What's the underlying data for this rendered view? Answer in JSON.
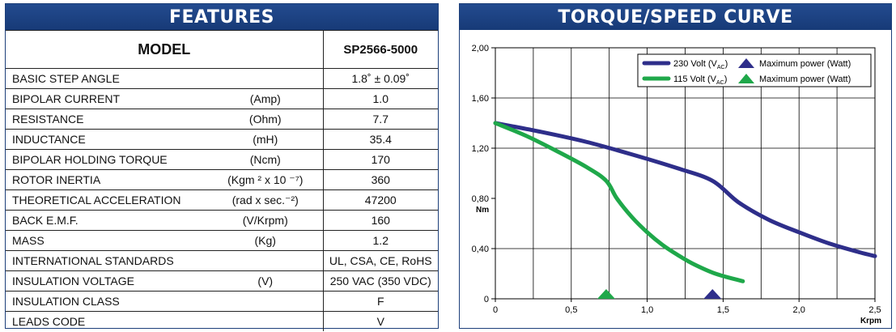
{
  "features": {
    "title": "FEATURES",
    "model_label": "MODEL",
    "model_value": "SP2566-5000",
    "rows": [
      {
        "label": "BASIC STEP ANGLE",
        "unit": "",
        "value": "1.8˚ ± 0.09˚"
      },
      {
        "label": "BIPOLAR CURRENT",
        "unit": "(Amp)",
        "value": "1.0"
      },
      {
        "label": "RESISTANCE",
        "unit": "(Ohm)",
        "value": "7.7"
      },
      {
        "label": "INDUCTANCE",
        "unit": "(mH)",
        "value": "35.4"
      },
      {
        "label": "BIPOLAR HOLDING TORQUE",
        "unit": "(Ncm)",
        "value": "170"
      },
      {
        "label": "ROTOR INERTIA",
        "unit": "(Kgm ² x 10 ⁻⁷)",
        "value": "360"
      },
      {
        "label": "THEORETICAL ACCELERATION",
        "unit": "(rad x sec.⁻²)",
        "value": "47200"
      },
      {
        "label": "BACK E.M.F.",
        "unit": "(V/Krpm)",
        "value": "160"
      },
      {
        "label": "MASS",
        "unit": "(Kg)",
        "value": "1.2"
      },
      {
        "label": "INTERNATIONAL STANDARDS",
        "unit": "",
        "value": "UL, CSA, CE, RoHS"
      },
      {
        "label": "INSULATION VOLTAGE",
        "unit": "(V)",
        "value": "250 VAC (350 VDC)"
      },
      {
        "label": "INSULATION CLASS",
        "unit": "",
        "value": "F"
      },
      {
        "label": "LEADS CODE",
        "unit": "",
        "value": "V"
      }
    ]
  },
  "chart_panel": {
    "title": "TORQUE/SPEED CURVE"
  },
  "chart_data": {
    "type": "line",
    "title": "TORQUE/SPEED CURVE",
    "xlabel": "Krpm",
    "ylabel": "Nm",
    "xlim": [
      0,
      2.5
    ],
    "ylim": [
      0,
      2.0
    ],
    "x_ticks": [
      "0",
      "0,5",
      "1,0",
      "1,5",
      "2,0",
      "2,5"
    ],
    "x_tick_values": [
      0,
      0.5,
      1.0,
      1.5,
      2.0,
      2.5
    ],
    "y_ticks": [
      "0",
      "0,40",
      "0,80",
      "1,20",
      "1,60",
      "2,00"
    ],
    "y_tick_values": [
      0,
      0.4,
      0.8,
      1.2,
      1.6,
      2.0
    ],
    "grid": true,
    "legend_position": "top-right",
    "series": [
      {
        "name": "230 Volt (VAC)",
        "color": "#2e2e8a",
        "x": [
          0.0,
          0.3,
          0.6,
          0.9,
          1.2,
          1.43,
          1.6,
          1.8,
          2.0,
          2.2,
          2.4,
          2.5
        ],
        "y": [
          1.4,
          1.33,
          1.25,
          1.15,
          1.04,
          0.94,
          0.77,
          0.63,
          0.53,
          0.44,
          0.37,
          0.34
        ],
        "max_power_marker": {
          "label": "Maximum power (Watt)",
          "x": 1.43,
          "y": 0.0
        }
      },
      {
        "name": "115 Volt (VAC)",
        "color": "#1fa84a",
        "x": [
          0.0,
          0.2,
          0.4,
          0.6,
          0.73,
          0.8,
          0.9,
          1.0,
          1.1,
          1.2,
          1.3,
          1.45,
          1.63
        ],
        "y": [
          1.4,
          1.3,
          1.18,
          1.05,
          0.94,
          0.8,
          0.65,
          0.53,
          0.43,
          0.35,
          0.28,
          0.2,
          0.14
        ],
        "max_power_marker": {
          "label": "Maximum power (Watt)",
          "x": 0.73,
          "y": 0.0
        }
      }
    ]
  }
}
